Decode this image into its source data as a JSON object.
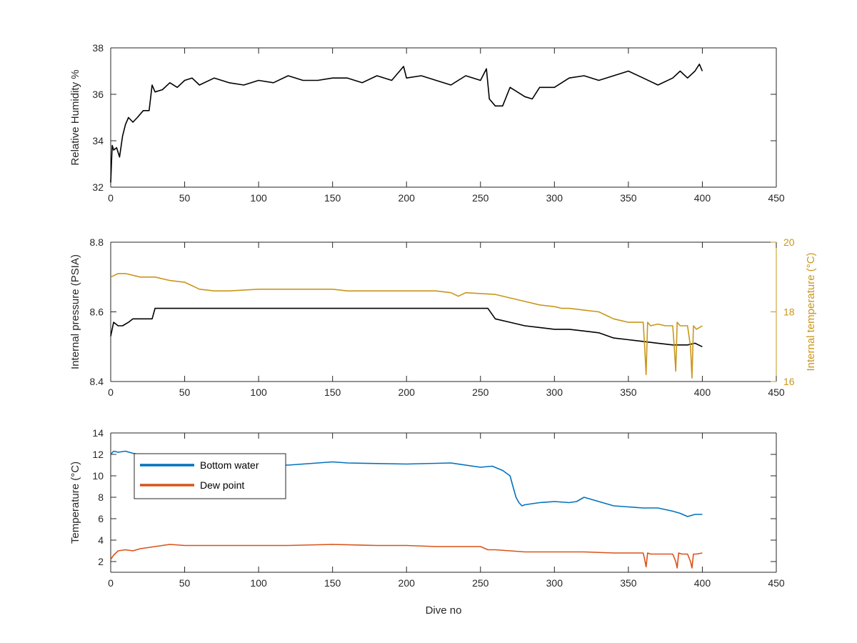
{
  "chart_data": [
    {
      "type": "line",
      "xlabel": "",
      "ylabel": "Relative Humidity %",
      "xlim": [
        0,
        450
      ],
      "ylim": [
        32,
        38
      ],
      "xticks": [
        0,
        50,
        100,
        150,
        200,
        250,
        300,
        350,
        400,
        450
      ],
      "yticks": [
        32,
        34,
        36,
        38
      ],
      "grid": false,
      "series": [
        {
          "color": "#000000",
          "x": [
            0,
            1,
            2,
            4,
            6,
            8,
            10,
            12,
            15,
            18,
            22,
            26,
            28,
            30,
            35,
            40,
            45,
            50,
            55,
            60,
            70,
            80,
            90,
            100,
            110,
            120,
            130,
            140,
            150,
            160,
            170,
            180,
            190,
            198,
            200,
            210,
            220,
            230,
            240,
            250,
            254,
            256,
            260,
            265,
            270,
            280,
            285,
            290,
            300,
            310,
            320,
            330,
            340,
            350,
            360,
            370,
            380,
            385,
            390,
            395,
            398,
            400
          ],
          "values": [
            32.2,
            33.8,
            33.6,
            33.7,
            33.3,
            34.2,
            34.7,
            35.0,
            34.8,
            35.0,
            35.3,
            35.3,
            36.4,
            36.1,
            36.2,
            36.5,
            36.3,
            36.6,
            36.7,
            36.4,
            36.7,
            36.5,
            36.4,
            36.6,
            36.5,
            36.8,
            36.6,
            36.6,
            36.7,
            36.7,
            36.5,
            36.8,
            36.6,
            37.2,
            36.7,
            36.8,
            36.6,
            36.4,
            36.8,
            36.6,
            37.1,
            35.8,
            35.5,
            35.5,
            36.3,
            35.9,
            35.8,
            36.3,
            36.3,
            36.7,
            36.8,
            36.6,
            36.8,
            37.0,
            36.7,
            36.4,
            36.7,
            37.0,
            36.7,
            37.0,
            37.3,
            37.0
          ]
        }
      ]
    },
    {
      "type": "line",
      "xlabel": "",
      "ylabel": "Internal pressure (PSIA)",
      "y2label": "Internal temperature (°C)",
      "xlim": [
        0,
        450
      ],
      "ylim": [
        8.4,
        8.8
      ],
      "y2lim": [
        16,
        20
      ],
      "xticks": [
        0,
        50,
        100,
        150,
        200,
        250,
        300,
        350,
        400,
        450
      ],
      "yticks": [
        8.4,
        8.6,
        8.8
      ],
      "y2ticks": [
        16,
        18,
        20
      ],
      "grid": false,
      "series": [
        {
          "axis": "left",
          "color": "#000000",
          "x": [
            0,
            2,
            5,
            8,
            12,
            15,
            20,
            25,
            28,
            30,
            40,
            60,
            80,
            100,
            120,
            140,
            160,
            180,
            200,
            220,
            240,
            255,
            260,
            270,
            280,
            290,
            300,
            310,
            320,
            330,
            340,
            350,
            360,
            370,
            380,
            390,
            395,
            400
          ],
          "values": [
            8.53,
            8.57,
            8.56,
            8.56,
            8.57,
            8.58,
            8.58,
            8.58,
            8.58,
            8.61,
            8.61,
            8.61,
            8.61,
            8.61,
            8.61,
            8.61,
            8.61,
            8.61,
            8.61,
            8.61,
            8.61,
            8.61,
            8.58,
            8.57,
            8.56,
            8.555,
            8.55,
            8.55,
            8.545,
            8.54,
            8.525,
            8.52,
            8.515,
            8.51,
            8.505,
            8.505,
            8.51,
            8.5
          ]
        },
        {
          "axis": "right",
          "color": "#c9961a",
          "x": [
            0,
            5,
            10,
            20,
            30,
            40,
            50,
            55,
            60,
            70,
            80,
            100,
            120,
            150,
            160,
            180,
            200,
            220,
            230,
            235,
            240,
            260,
            270,
            280,
            290,
            300,
            305,
            310,
            320,
            330,
            335,
            340,
            345,
            350,
            355,
            360,
            361,
            362,
            363,
            365,
            370,
            375,
            380,
            381,
            382,
            383,
            385,
            390,
            392,
            393,
            394,
            396,
            400
          ],
          "values": [
            19.0,
            19.1,
            19.1,
            19.0,
            19.0,
            18.9,
            18.85,
            18.75,
            18.65,
            18.6,
            18.6,
            18.65,
            18.65,
            18.65,
            18.6,
            18.6,
            18.6,
            18.6,
            18.55,
            18.45,
            18.55,
            18.5,
            18.4,
            18.3,
            18.2,
            18.15,
            18.1,
            18.1,
            18.05,
            18.0,
            17.9,
            17.8,
            17.75,
            17.7,
            17.7,
            17.7,
            17.0,
            16.2,
            17.7,
            17.6,
            17.65,
            17.6,
            17.6,
            17.0,
            16.3,
            17.7,
            17.6,
            17.6,
            17.0,
            16.1,
            17.6,
            17.5,
            17.6
          ]
        }
      ]
    },
    {
      "type": "line",
      "xlabel": "Dive no",
      "ylabel": "Temperature (°C)",
      "xlim": [
        0,
        450
      ],
      "ylim": [
        1,
        14
      ],
      "xticks": [
        0,
        50,
        100,
        150,
        200,
        250,
        300,
        350,
        400,
        450
      ],
      "yticks": [
        2,
        4,
        6,
        8,
        10,
        12,
        14
      ],
      "grid": false,
      "legend": "top-left",
      "series": [
        {
          "name": "Bottom water",
          "color": "#0072bd",
          "x": [
            0,
            2,
            5,
            10,
            15,
            20,
            30,
            50,
            70,
            100,
            120,
            140,
            150,
            160,
            200,
            230,
            250,
            258,
            265,
            270,
            272,
            274,
            276,
            278,
            280,
            290,
            300,
            310,
            315,
            320,
            330,
            340,
            350,
            360,
            370,
            380,
            385,
            390,
            395,
            400
          ],
          "values": [
            12.0,
            12.3,
            12.2,
            12.3,
            12.1,
            12.0,
            11.5,
            11.3,
            11.2,
            11.1,
            11.0,
            11.2,
            11.3,
            11.2,
            11.1,
            11.2,
            10.8,
            10.9,
            10.5,
            10.0,
            9.0,
            8.0,
            7.5,
            7.2,
            7.3,
            7.5,
            7.6,
            7.5,
            7.6,
            8.0,
            7.6,
            7.2,
            7.1,
            7.0,
            7.0,
            6.7,
            6.5,
            6.2,
            6.4,
            6.4
          ]
        },
        {
          "name": "Dew point",
          "color": "#d95319",
          "x": [
            0,
            2,
            5,
            10,
            15,
            20,
            30,
            40,
            50,
            60,
            80,
            100,
            120,
            150,
            180,
            200,
            220,
            250,
            255,
            260,
            270,
            280,
            300,
            320,
            340,
            350,
            360,
            361,
            362,
            363,
            365,
            370,
            380,
            382,
            383,
            384,
            386,
            390,
            392,
            393,
            394,
            396,
            400
          ],
          "values": [
            2.2,
            2.6,
            3.0,
            3.1,
            3.0,
            3.2,
            3.4,
            3.6,
            3.5,
            3.5,
            3.5,
            3.5,
            3.5,
            3.6,
            3.5,
            3.5,
            3.4,
            3.4,
            3.1,
            3.1,
            3.0,
            2.9,
            2.9,
            2.9,
            2.8,
            2.8,
            2.8,
            2.2,
            1.5,
            2.8,
            2.7,
            2.7,
            2.7,
            2.0,
            1.4,
            2.8,
            2.7,
            2.7,
            2.0,
            1.4,
            2.7,
            2.7,
            2.8
          ]
        }
      ]
    }
  ]
}
